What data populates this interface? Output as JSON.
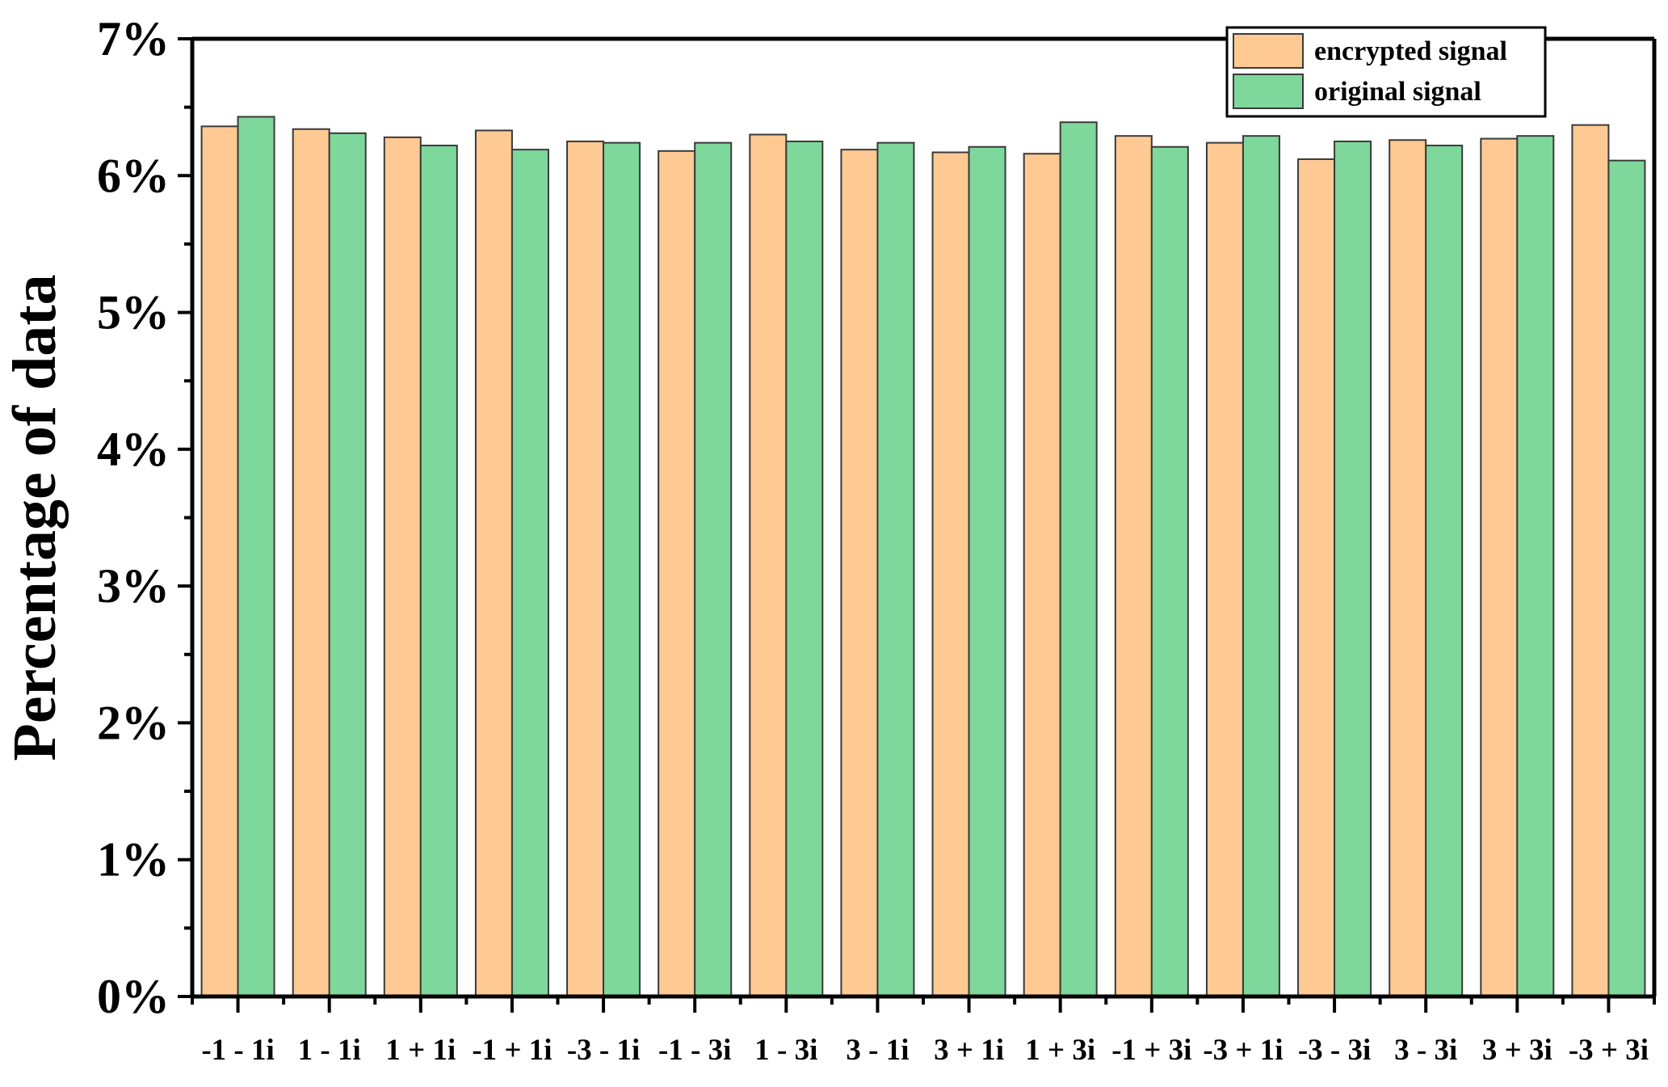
{
  "chart_data": {
    "type": "bar",
    "title": "",
    "xlabel": "",
    "ylabel": "Percentage of data",
    "ylim": [
      0,
      7
    ],
    "y_ticks": [
      0,
      1,
      2,
      3,
      4,
      5,
      6,
      7
    ],
    "y_tick_labels": [
      "0%",
      "1%",
      "2%",
      "3%",
      "4%",
      "5%",
      "6%",
      "7%"
    ],
    "categories": [
      "-1 - 1i",
      "1 - 1i",
      "1 + 1i",
      "-1 + 1i",
      "-3 - 1i",
      "-1 - 3i",
      "1 - 3i",
      "3 - 1i",
      "3 + 1i",
      "1 + 3i",
      "-1 + 3i",
      "-3 + 1i",
      "-3 - 3i",
      "3 - 3i",
      "3 + 3i",
      "-3 + 3i"
    ],
    "series": [
      {
        "name": "encrypted signal",
        "color": "#FFC994",
        "values": [
          6.36,
          6.34,
          6.28,
          6.33,
          6.25,
          6.18,
          6.3,
          6.19,
          6.17,
          6.16,
          6.29,
          6.24,
          6.12,
          6.26,
          6.27,
          6.37
        ]
      },
      {
        "name": "original signal",
        "color": "#7FD89B",
        "values": [
          6.43,
          6.31,
          6.22,
          6.19,
          6.24,
          6.24,
          6.25,
          6.24,
          6.21,
          6.39,
          6.21,
          6.29,
          6.25,
          6.22,
          6.29,
          6.11
        ]
      }
    ],
    "grid": false,
    "legend_position": "top-right"
  }
}
